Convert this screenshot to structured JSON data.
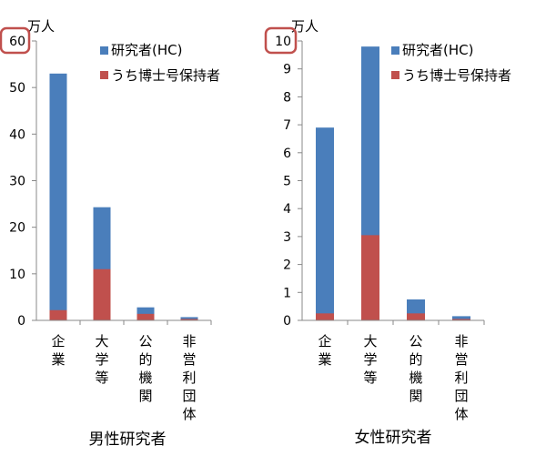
{
  "chart_data": [
    {
      "type": "bar",
      "stacked": false,
      "title": "男性研究者",
      "unit_label": "万人",
      "ylim": [
        0,
        60
      ],
      "yticks": [
        0,
        10,
        20,
        30,
        40,
        50,
        60
      ],
      "categories": [
        "企業",
        "大学等",
        "公的機関",
        "非営利団体"
      ],
      "series": [
        {
          "name": "研究者(HC)",
          "values": [
            53.0,
            24.3,
            2.8,
            0.7
          ]
        },
        {
          "name": "うち博士号保持者",
          "values": [
            2.2,
            11.0,
            1.4,
            0.3
          ]
        }
      ],
      "highlighted_tick": "60",
      "legend_position": "top-right",
      "grid": false
    },
    {
      "type": "bar",
      "stacked": false,
      "title": "女性研究者",
      "unit_label": "万人",
      "ylim": [
        0,
        10
      ],
      "yticks": [
        0,
        1,
        2,
        3,
        4,
        5,
        6,
        7,
        8,
        9,
        10
      ],
      "categories": [
        "企業",
        "大学等",
        "公的機関",
        "非営利団体"
      ],
      "series": [
        {
          "name": "研究者(HC)",
          "values": [
            6.9,
            9.8,
            0.75,
            0.15
          ]
        },
        {
          "name": "うち博士号保持者",
          "values": [
            0.25,
            3.05,
            0.25,
            0.05
          ]
        }
      ],
      "highlighted_tick": "10",
      "legend_position": "top-right",
      "grid": false
    }
  ],
  "colors": {
    "researchers": "#4a7ebb",
    "doctorate": "#c0504d",
    "highlight_box": "#c0504d",
    "axis": "#888888"
  }
}
